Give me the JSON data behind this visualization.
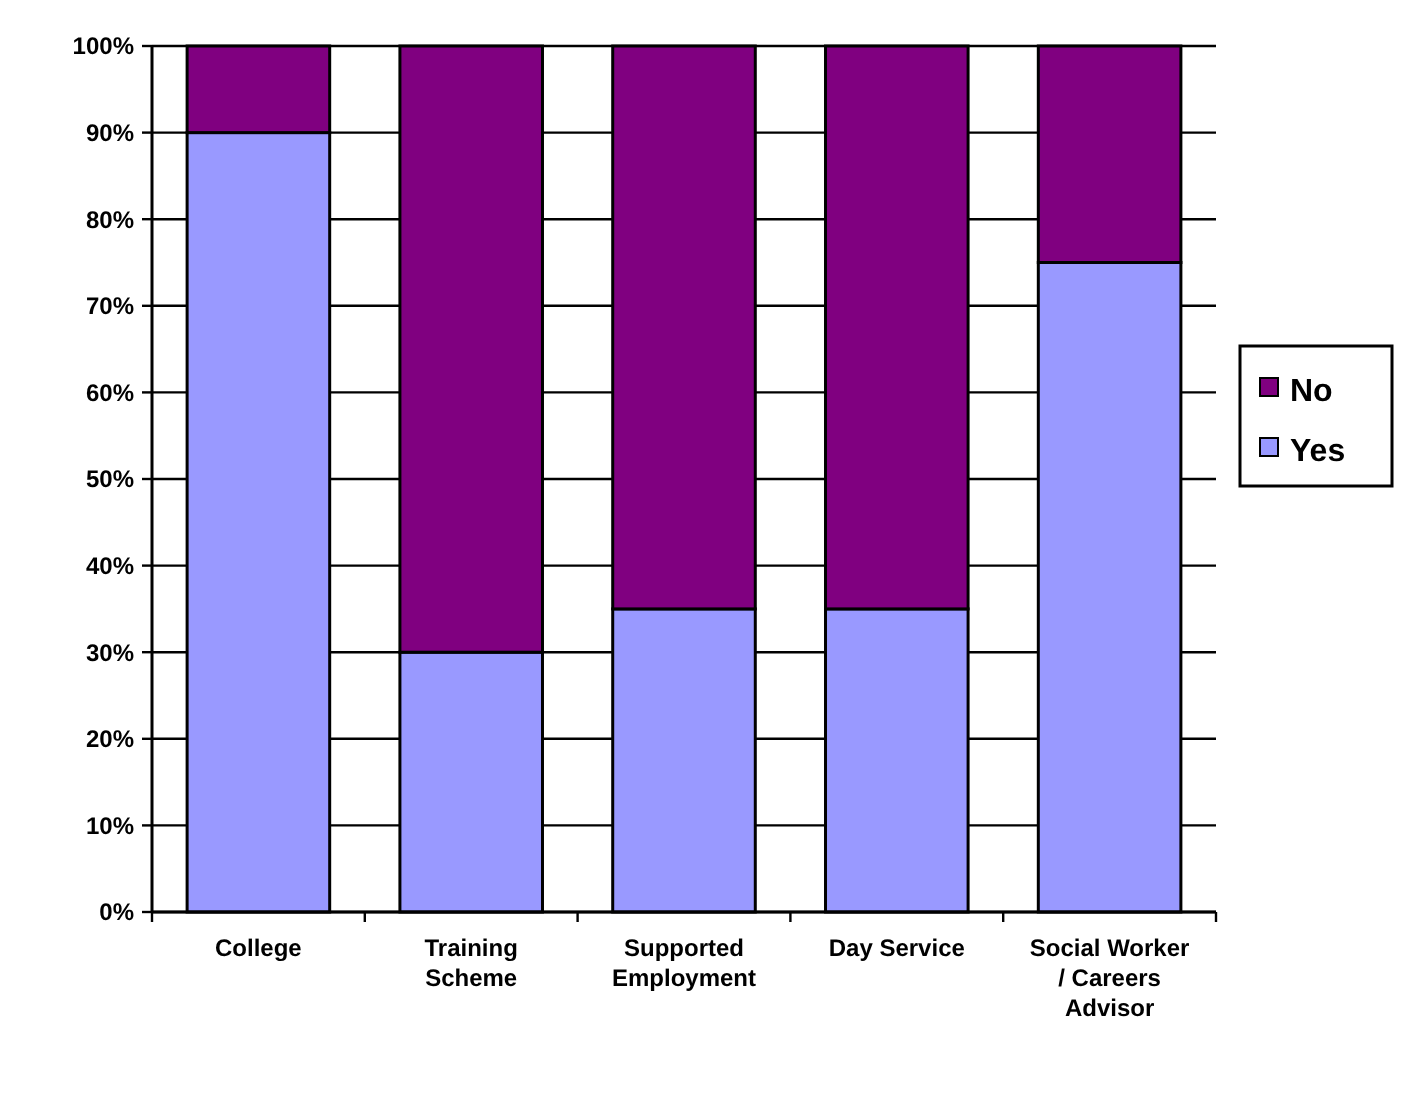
{
  "chart_data": {
    "type": "bar",
    "stacked": true,
    "categories": [
      "College",
      "Training Scheme",
      "Supported Employment",
      "Day Service",
      "Social Worker / Careers Advisor"
    ],
    "series": [
      {
        "name": "Yes",
        "color": "#9999ff",
        "values": [
          90,
          30,
          35,
          35,
          75
        ]
      },
      {
        "name": "No",
        "color": "#800080",
        "values": [
          10,
          70,
          65,
          65,
          25
        ]
      }
    ],
    "ylim": [
      0,
      100
    ],
    "yticks": [
      {
        "value": 0,
        "label": "0%"
      },
      {
        "value": 10,
        "label": "10%"
      },
      {
        "value": 20,
        "label": "20%"
      },
      {
        "value": 30,
        "label": "30%"
      },
      {
        "value": 40,
        "label": "40%"
      },
      {
        "value": 50,
        "label": "50%"
      },
      {
        "value": 60,
        "label": "60%"
      },
      {
        "value": 70,
        "label": "70%"
      },
      {
        "value": 80,
        "label": "80%"
      },
      {
        "value": 90,
        "label": "90%"
      },
      {
        "value": 100,
        "label": "100%"
      }
    ],
    "grid": "y",
    "legend": "right"
  }
}
